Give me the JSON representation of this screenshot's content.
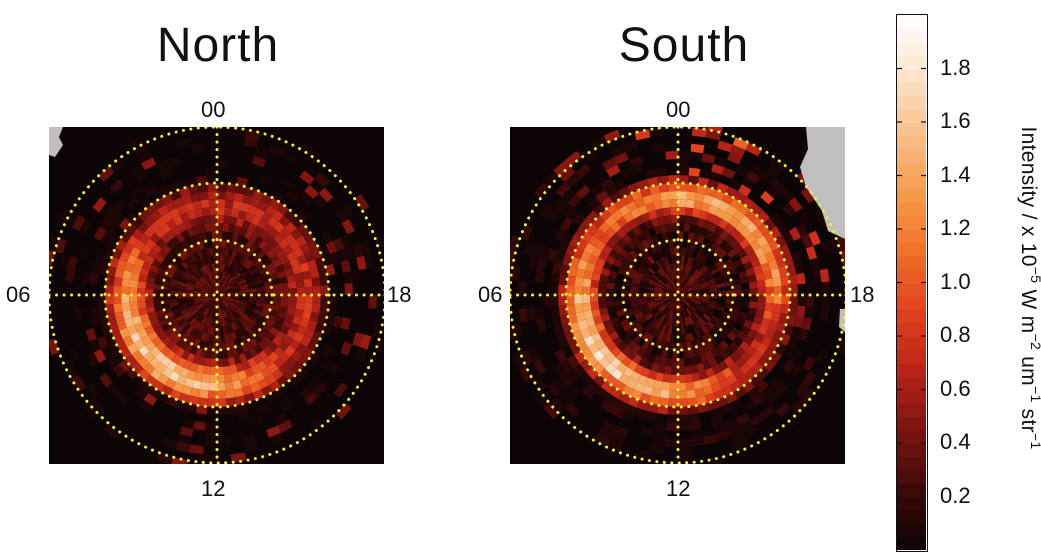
{
  "chart_data": [
    {
      "type": "heatmap",
      "title": "North",
      "projection": "polar local-time map",
      "lt_labels": {
        "top": "00",
        "left": "06",
        "right": "18",
        "bottom": "12"
      },
      "overlay_circles": 3,
      "colormap": "black-red-orange-white",
      "auroral_oval": {
        "peak_intensity_approx": 1.8,
        "brightest_sector": "06-12 dawn/noon side"
      }
    },
    {
      "type": "heatmap",
      "title": "South",
      "projection": "polar local-time map",
      "lt_labels": {
        "top": "00",
        "left": "06",
        "right": "18",
        "bottom": "12"
      },
      "overlay_circles": 3,
      "colormap": "black-red-orange-white",
      "auroral_oval": {
        "peak_intensity_approx": 1.9,
        "brightest_sector": "06-12 dawn/noon and 21-00 sectors"
      }
    }
  ],
  "colorbar": {
    "label_prefix": "Intensity / x 10",
    "label_exp1": "−5",
    "label_mid1": " W m",
    "label_exp2": "−2",
    "label_mid2": " um",
    "label_exp3": "−1",
    "label_mid3": " str",
    "label_exp4": "−1",
    "ticks": [
      "1.8",
      "1.6",
      "1.4",
      "1.2",
      "1.0",
      "0.8",
      "0.6",
      "0.4",
      "0.2"
    ],
    "tick_values": [
      1.8,
      1.6,
      1.4,
      1.2,
      1.0,
      0.8,
      0.6,
      0.4,
      0.2
    ],
    "range": [
      0,
      2.0
    ],
    "colors": [
      "#0b0404",
      "#3a0a08",
      "#7a1410",
      "#b82318",
      "#e0401e",
      "#f07028",
      "#f69a4a",
      "#f9c08a",
      "#fde4cc",
      "#ffffff"
    ]
  },
  "grid_color": "#f2ee3a",
  "nodata_color": "#bfbfbf"
}
